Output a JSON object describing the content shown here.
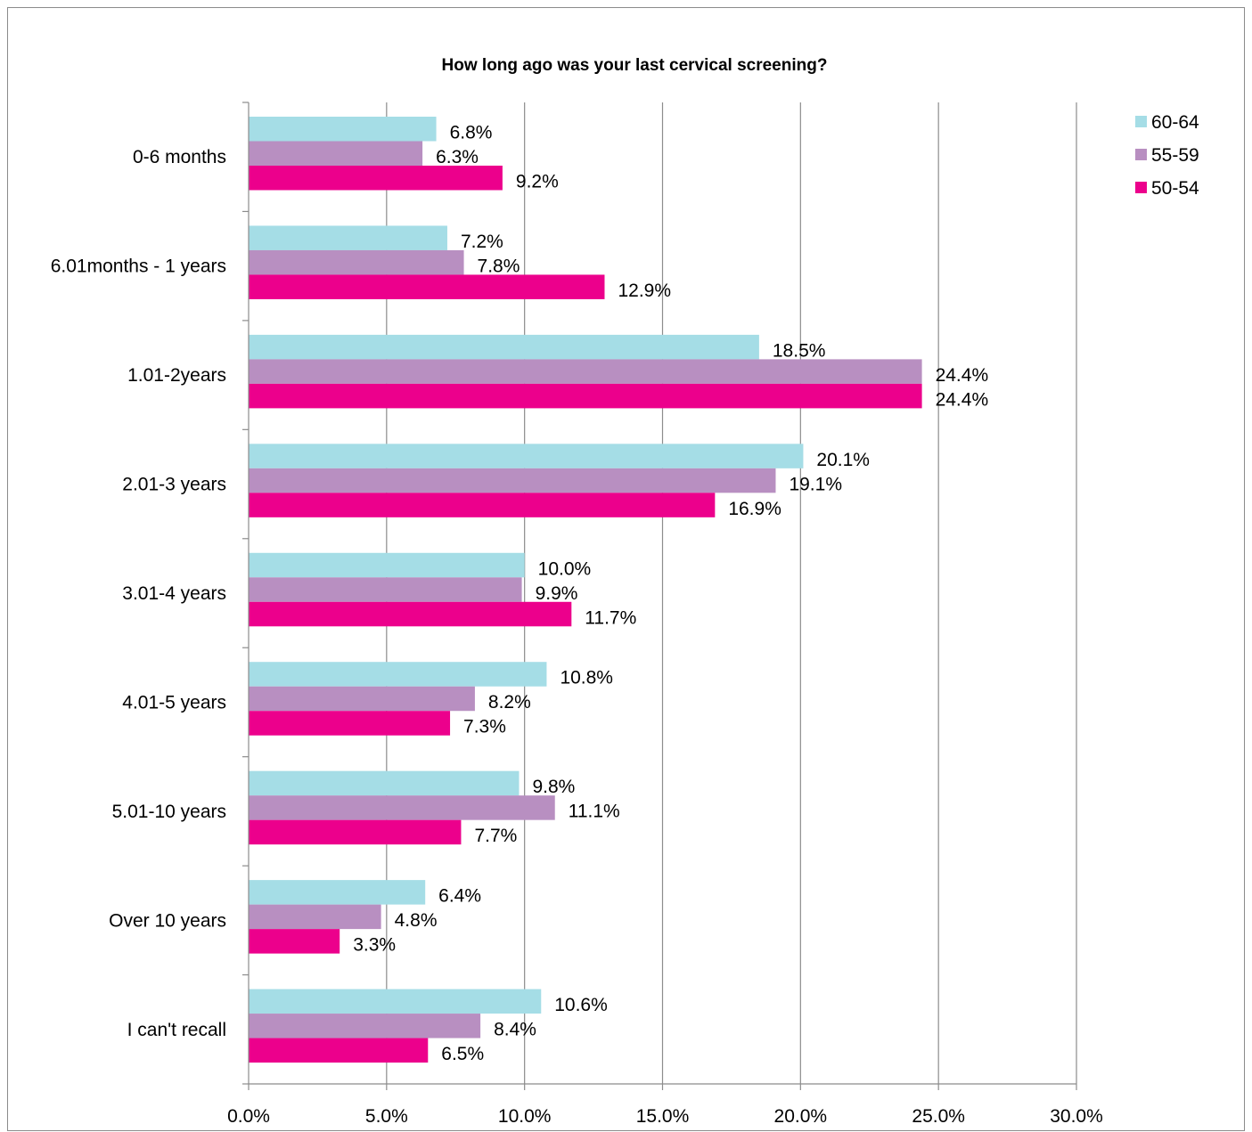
{
  "chart_data": {
    "type": "bar",
    "orientation": "horizontal",
    "title": "How long ago was your last cervical screening?",
    "categories": [
      "0-6 months",
      "6.01months - 1 years",
      "1.01-2years",
      "2.01-3 years",
      "3.01-4 years",
      "4.01-5 years",
      "5.01-10 years",
      "Over 10 years",
      "I can't recall"
    ],
    "series": [
      {
        "name": "60-64",
        "color": "#a5dde6",
        "values": [
          6.8,
          7.2,
          18.5,
          20.1,
          10.0,
          10.8,
          9.8,
          6.4,
          10.6
        ],
        "labels": [
          "6.8%",
          "7.2%",
          "18.5%",
          "20.1%",
          "10.0%",
          "10.8%",
          "9.8%",
          "6.4%",
          "10.6%"
        ]
      },
      {
        "name": "55-59",
        "color": "#b88fc1",
        "values": [
          6.3,
          7.8,
          24.4,
          19.1,
          9.9,
          8.2,
          11.1,
          4.8,
          8.4
        ],
        "labels": [
          "6.3%",
          "7.8%",
          "24.4%",
          "19.1%",
          "9.9%",
          "8.2%",
          "11.1%",
          "4.8%",
          "8.4%"
        ]
      },
      {
        "name": "50-54",
        "color": "#ec008c",
        "values": [
          9.2,
          12.9,
          24.4,
          16.9,
          11.7,
          7.3,
          7.7,
          3.3,
          6.5
        ],
        "labels": [
          "9.2%",
          "12.9%",
          "24.4%",
          "16.9%",
          "11.7%",
          "7.3%",
          "7.7%",
          "3.3%",
          "6.5%"
        ]
      }
    ],
    "xlim": [
      0,
      30
    ],
    "xticks": [
      0,
      5,
      10,
      15,
      20,
      25,
      30
    ],
    "xtick_labels": [
      "0.0%",
      "5.0%",
      "10.0%",
      "15.0%",
      "20.0%",
      "25.0%",
      "30.0%"
    ],
    "grid": "vertical",
    "legend_position": "top-right",
    "legend_order": [
      "60-64",
      "55-59",
      "50-54"
    ]
  }
}
